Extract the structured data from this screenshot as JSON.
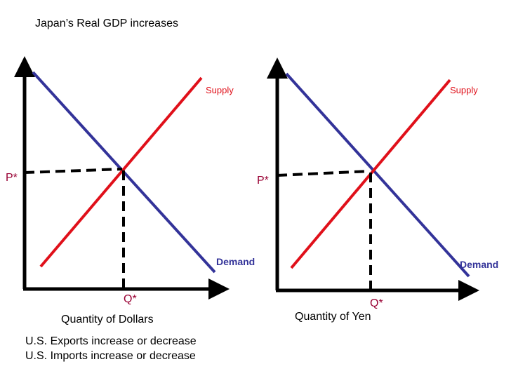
{
  "title": "Japan’s Real GDP increases",
  "colors": {
    "supply": "#e0101a",
    "demand": "#333399",
    "axis": "#000000",
    "marker": "#990033"
  },
  "left_graph": {
    "supply_label": "Supply",
    "demand_label": "Demand",
    "price_label": "P*",
    "quantity_marker": "Q*",
    "x_axis_label": "Quantity of Dollars"
  },
  "right_graph": {
    "supply_label": "Supply",
    "demand_label": "Demand",
    "price_label": "P*",
    "quantity_marker": "Q*",
    "x_axis_label": "Quantity of Yen"
  },
  "notes": {
    "line1": "U.S. Exports increase or decrease",
    "line2": "U.S. Imports increase or decrease"
  }
}
